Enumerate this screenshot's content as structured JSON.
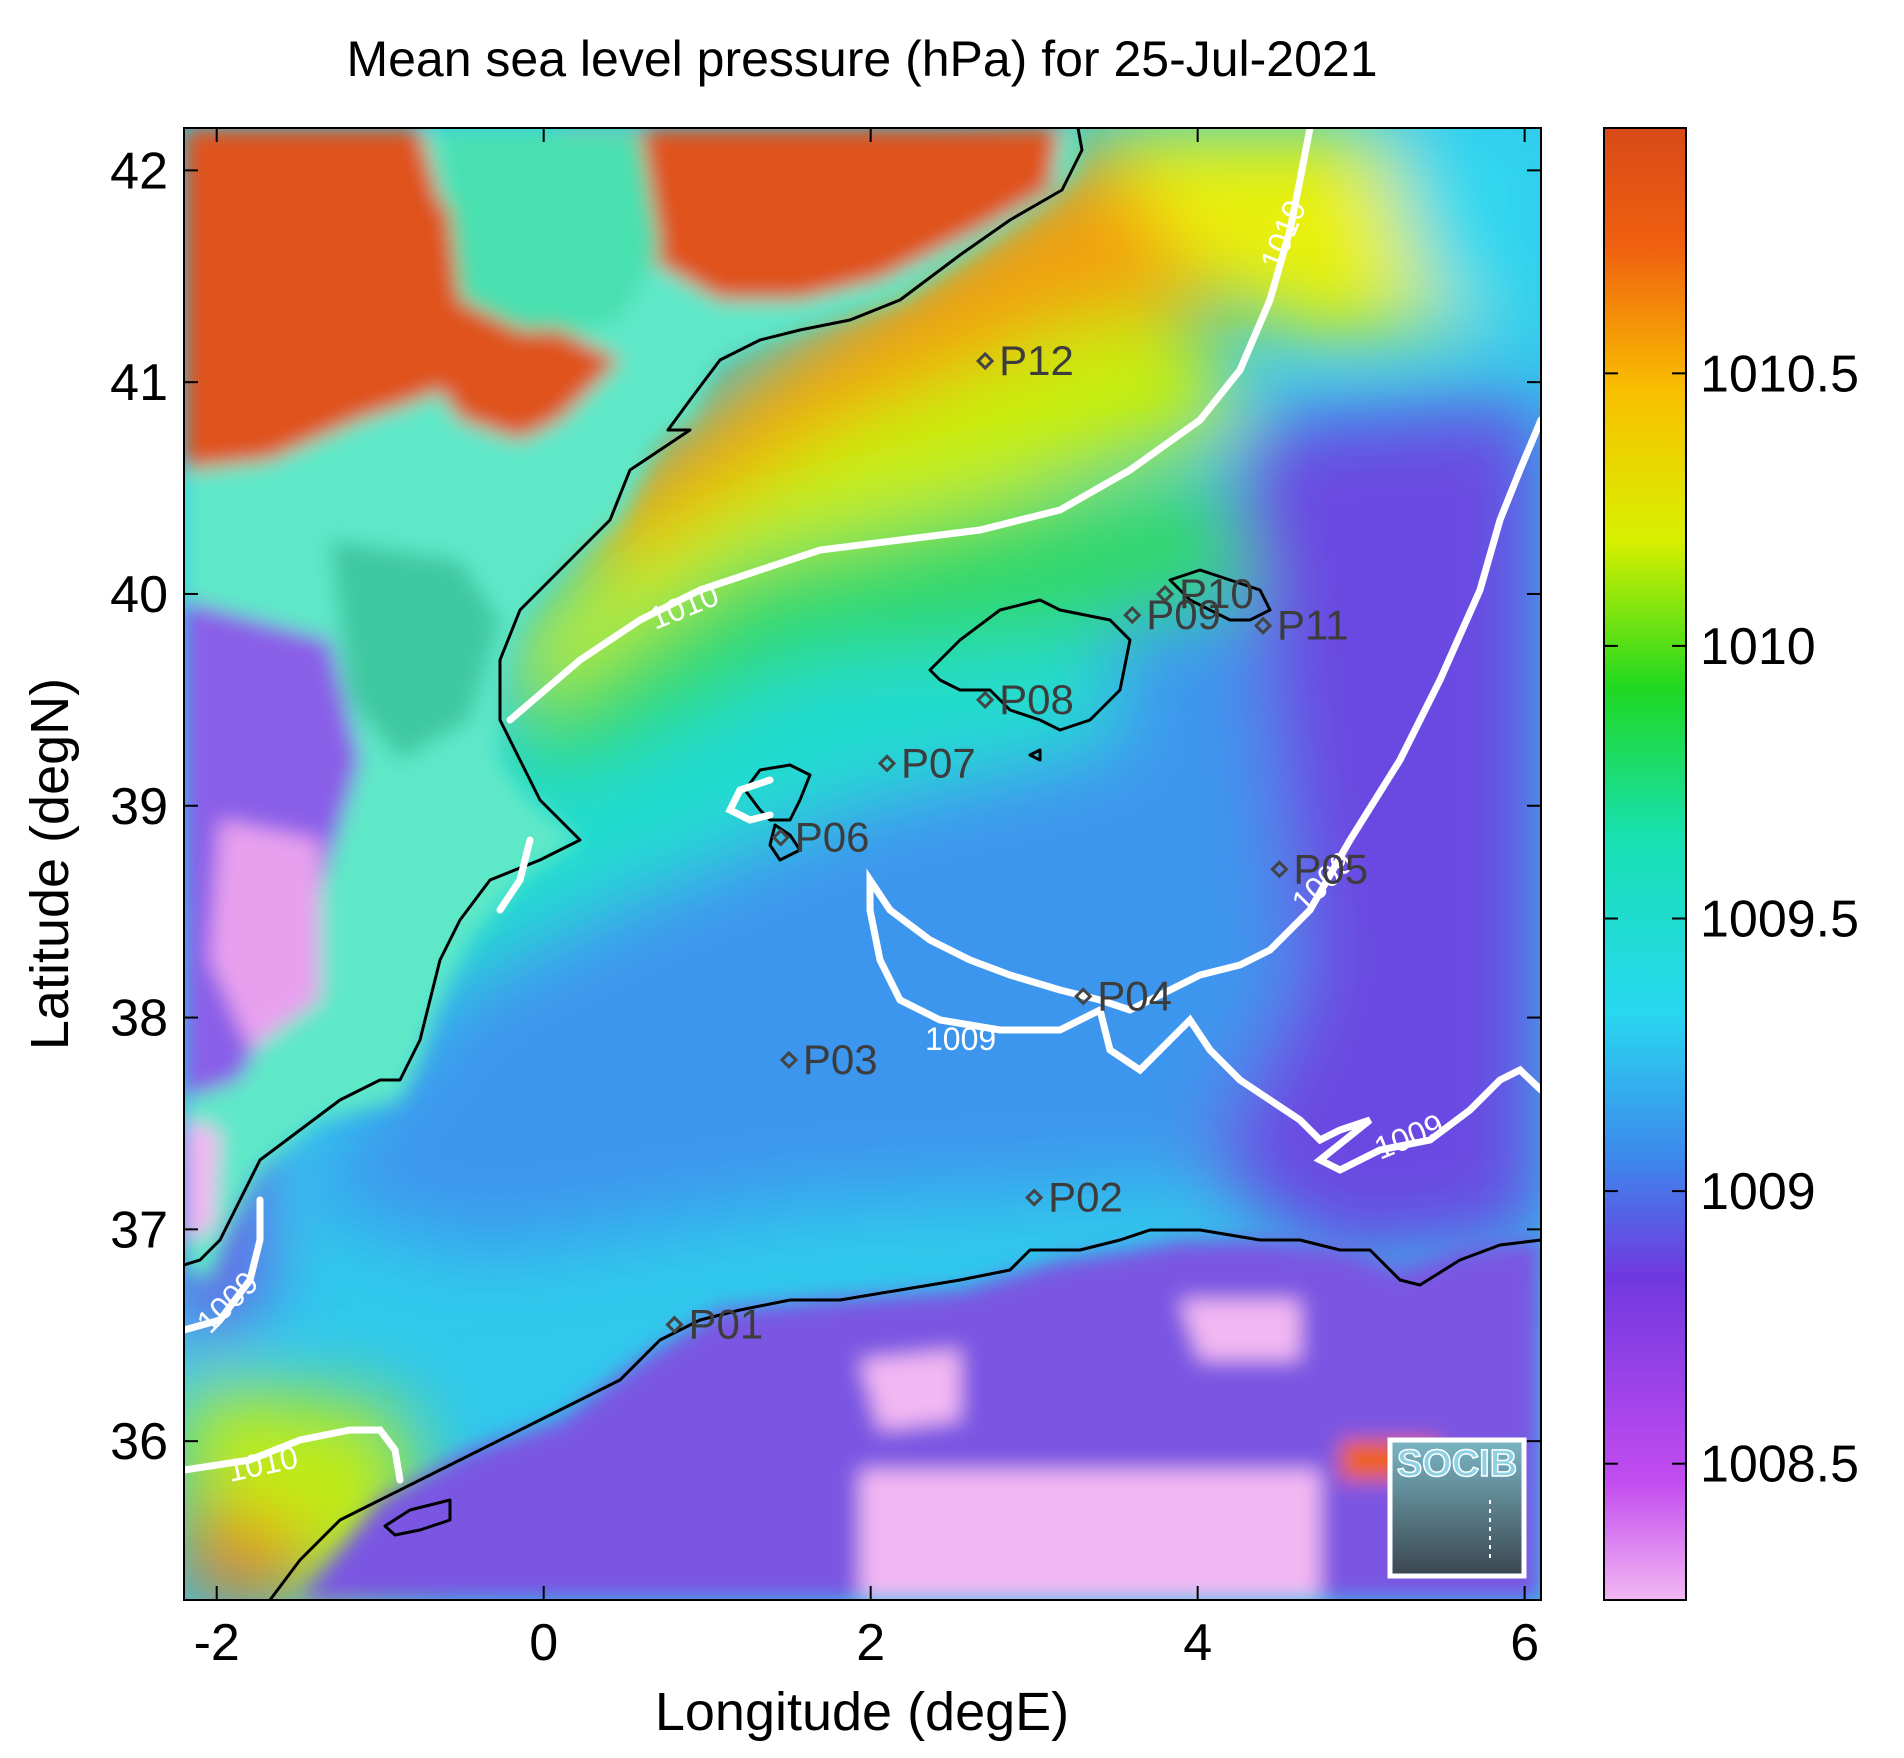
{
  "chart_data": {
    "type": "heatmap",
    "title": "Mean sea level pressure (hPa) for 25-Jul-2021",
    "xlabel": "Longitude (degE)",
    "ylabel": "Latitude (degN)",
    "xlim": [
      -2.2,
      6.1
    ],
    "ylim": [
      35.25,
      42.2
    ],
    "x_ticks": [
      "-2",
      "0",
      "2",
      "4",
      "6"
    ],
    "y_ticks": [
      "36",
      "37",
      "38",
      "39",
      "40",
      "41",
      "42"
    ],
    "colorbar": {
      "range": [
        1008.25,
        1010.95
      ],
      "ticks": [
        "1008.5",
        "1009",
        "1009.5",
        "1010",
        "1010.5"
      ],
      "colors": [
        "#f2b7f2",
        "#c34cf0",
        "#7038e0",
        "#3d88ec",
        "#28d8f0",
        "#18e0b0",
        "#20d820",
        "#d8f000",
        "#f8c000",
        "#f06010",
        "#d84a18"
      ]
    },
    "contours": [
      {
        "level": 1010,
        "label": "1010"
      },
      {
        "level": 1009,
        "label": "1009"
      }
    ],
    "stations": [
      {
        "name": "P01",
        "lon": 0.8,
        "lat": 36.55
      },
      {
        "name": "P02",
        "lon": 3.0,
        "lat": 37.15
      },
      {
        "name": "P03",
        "lon": 1.5,
        "lat": 37.8
      },
      {
        "name": "P04",
        "lon": 3.3,
        "lat": 38.1
      },
      {
        "name": "P05",
        "lon": 4.5,
        "lat": 38.7
      },
      {
        "name": "P06",
        "lon": 1.45,
        "lat": 38.85
      },
      {
        "name": "P07",
        "lon": 2.1,
        "lat": 39.2
      },
      {
        "name": "P08",
        "lon": 2.7,
        "lat": 39.5
      },
      {
        "name": "P09",
        "lon": 3.6,
        "lat": 39.9
      },
      {
        "name": "P10",
        "lon": 3.8,
        "lat": 40.0
      },
      {
        "name": "P11",
        "lon": 4.4,
        "lat": 39.85
      },
      {
        "name": "P12",
        "lon": 2.7,
        "lat": 41.1
      }
    ],
    "logo": "SOCIB"
  }
}
